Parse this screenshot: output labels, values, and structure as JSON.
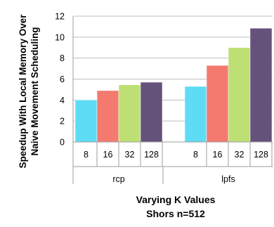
{
  "chart_data": {
    "type": "bar",
    "ylabel_lines": [
      "Speedup With Local Memory Over",
      "Naive Movement Scheduling"
    ],
    "xlabel": "Varying K Values",
    "subtitle": "Shors n=512",
    "ylim": [
      0,
      12
    ],
    "yticks": [
      0,
      2,
      4,
      6,
      8,
      10,
      12
    ],
    "grid": true,
    "groups": [
      {
        "name": "rcp",
        "categories": [
          "8",
          "16",
          "32",
          "128"
        ],
        "values": [
          4.0,
          4.9,
          5.45,
          5.7
        ]
      },
      {
        "name": "lpfs",
        "categories": [
          "8",
          "16",
          "32",
          "128"
        ],
        "values": [
          5.3,
          7.3,
          9.0,
          10.85
        ]
      }
    ],
    "colors": [
      "#5fdcf5",
      "#f47a70",
      "#bddf74",
      "#65527b"
    ]
  }
}
